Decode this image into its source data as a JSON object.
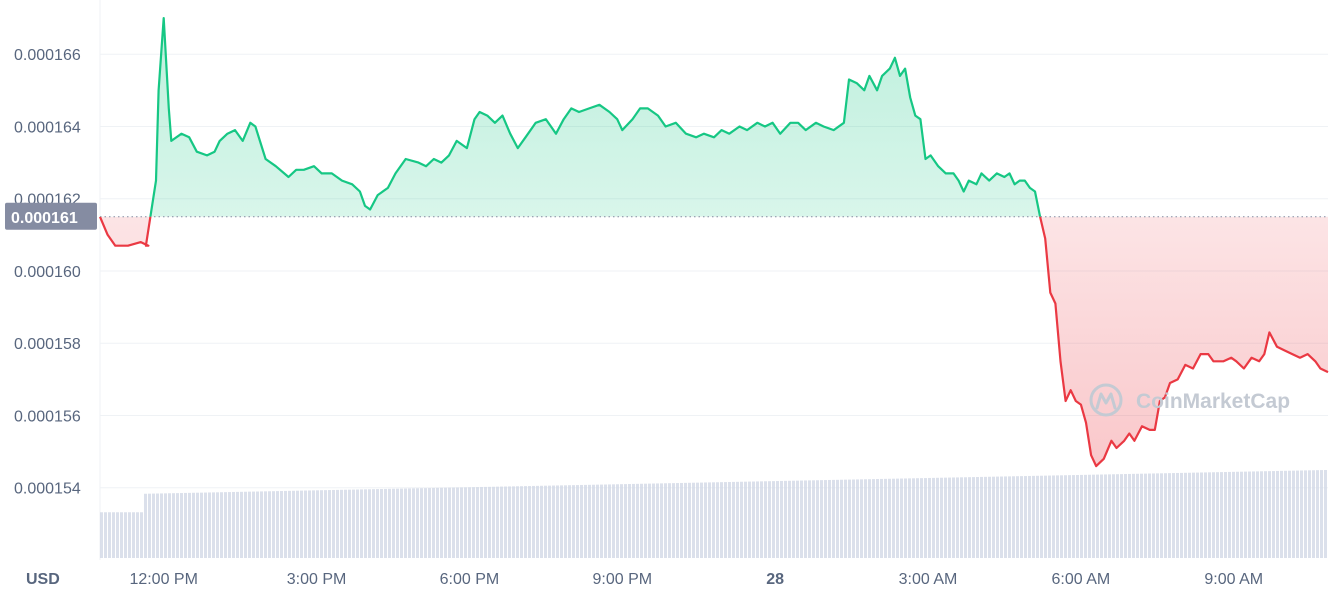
{
  "currency_label": "USD",
  "watermark": "CoinMarketCap",
  "colors": {
    "up": "#16c784",
    "down": "#ea3943",
    "grid": "#eff2f5",
    "axis_text": "#58667e",
    "volume": "#cfd6e4",
    "open_tag_bg": "#858ca2"
  },
  "chart_data": {
    "type": "area",
    "open_price": 0.0001615,
    "open_price_label": "0.000161",
    "ylim": [
      0.000152,
      0.0001675
    ],
    "y_ticks": [
      {
        "value": 0.000166,
        "label": "0.000166"
      },
      {
        "value": 0.000164,
        "label": "0.000164"
      },
      {
        "value": 0.000162,
        "label": "0.000162"
      },
      {
        "value": 0.00016,
        "label": "0.000160"
      },
      {
        "value": 0.000158,
        "label": "0.000158"
      },
      {
        "value": 0.000156,
        "label": "0.000156"
      },
      {
        "value": 0.000154,
        "label": "0.000154"
      }
    ],
    "x_range_hours": [
      -1.25,
      22.85
    ],
    "x_ticks": [
      {
        "hour": 0,
        "label": "12:00 PM",
        "bold": false
      },
      {
        "hour": 3,
        "label": "3:00 PM",
        "bold": false
      },
      {
        "hour": 6,
        "label": "6:00 PM",
        "bold": false
      },
      {
        "hour": 9,
        "label": "9:00 PM",
        "bold": false
      },
      {
        "hour": 12,
        "label": "28",
        "bold": true
      },
      {
        "hour": 15,
        "label": "3:00 AM",
        "bold": false
      },
      {
        "hour": 18,
        "label": "6:00 AM",
        "bold": false
      },
      {
        "hour": 21,
        "label": "9:00 AM",
        "bold": false
      }
    ],
    "series": [
      {
        "points": [
          [
            -1.25,
            0.0001615
          ],
          [
            -1.1,
            0.000161
          ],
          [
            -0.95,
            0.0001607
          ],
          [
            -0.7,
            0.0001607
          ],
          [
            -0.45,
            0.0001608
          ],
          [
            -0.3,
            0.0001607
          ],
          [
            -0.35,
            0.0001607
          ],
          [
            -0.15,
            0.0001625
          ],
          [
            -0.1,
            0.000165
          ],
          [
            0.0,
            0.000167
          ],
          [
            0.1,
            0.0001645
          ],
          [
            0.15,
            0.0001636
          ],
          [
            0.35,
            0.0001638
          ],
          [
            0.5,
            0.0001637
          ],
          [
            0.65,
            0.0001633
          ],
          [
            0.85,
            0.0001632
          ],
          [
            1.0,
            0.0001633
          ],
          [
            1.1,
            0.0001636
          ],
          [
            1.25,
            0.0001638
          ],
          [
            1.4,
            0.0001639
          ],
          [
            1.55,
            0.0001636
          ],
          [
            1.7,
            0.0001641
          ],
          [
            1.8,
            0.000164
          ],
          [
            2.0,
            0.0001631
          ],
          [
            2.2,
            0.0001629
          ],
          [
            2.45,
            0.0001626
          ],
          [
            2.6,
            0.0001628
          ],
          [
            2.75,
            0.0001628
          ],
          [
            2.95,
            0.0001629
          ],
          [
            3.1,
            0.0001627
          ],
          [
            3.3,
            0.0001627
          ],
          [
            3.5,
            0.0001625
          ],
          [
            3.7,
            0.0001624
          ],
          [
            3.85,
            0.0001622
          ],
          [
            3.95,
            0.0001618
          ],
          [
            4.05,
            0.0001617
          ],
          [
            4.2,
            0.0001621
          ],
          [
            4.4,
            0.0001623
          ],
          [
            4.55,
            0.0001627
          ],
          [
            4.75,
            0.0001631
          ],
          [
            5.0,
            0.000163
          ],
          [
            5.15,
            0.0001629
          ],
          [
            5.3,
            0.0001631
          ],
          [
            5.45,
            0.000163
          ],
          [
            5.6,
            0.0001632
          ],
          [
            5.75,
            0.0001636
          ],
          [
            5.95,
            0.0001634
          ],
          [
            6.1,
            0.0001642
          ],
          [
            6.2,
            0.0001644
          ],
          [
            6.35,
            0.0001643
          ],
          [
            6.5,
            0.0001641
          ],
          [
            6.65,
            0.0001643
          ],
          [
            6.8,
            0.0001638
          ],
          [
            6.95,
            0.0001634
          ],
          [
            7.1,
            0.0001637
          ],
          [
            7.3,
            0.0001641
          ],
          [
            7.5,
            0.0001642
          ],
          [
            7.7,
            0.0001638
          ],
          [
            7.85,
            0.0001642
          ],
          [
            8.0,
            0.0001645
          ],
          [
            8.15,
            0.0001644
          ],
          [
            8.35,
            0.0001645
          ],
          [
            8.55,
            0.0001646
          ],
          [
            8.75,
            0.0001644
          ],
          [
            8.9,
            0.0001642
          ],
          [
            9.0,
            0.0001639
          ],
          [
            9.2,
            0.0001642
          ],
          [
            9.35,
            0.0001645
          ],
          [
            9.5,
            0.0001645
          ],
          [
            9.7,
            0.0001643
          ],
          [
            9.85,
            0.000164
          ],
          [
            10.05,
            0.0001641
          ],
          [
            10.25,
            0.0001638
          ],
          [
            10.45,
            0.0001637
          ],
          [
            10.6,
            0.0001638
          ],
          [
            10.8,
            0.0001637
          ],
          [
            10.95,
            0.0001639
          ],
          [
            11.1,
            0.0001638
          ],
          [
            11.3,
            0.000164
          ],
          [
            11.45,
            0.0001639
          ],
          [
            11.65,
            0.0001641
          ],
          [
            11.8,
            0.000164
          ],
          [
            11.95,
            0.0001641
          ],
          [
            12.1,
            0.0001638
          ],
          [
            12.3,
            0.0001641
          ],
          [
            12.45,
            0.0001641
          ],
          [
            12.6,
            0.0001639
          ],
          [
            12.8,
            0.0001641
          ],
          [
            12.95,
            0.000164
          ],
          [
            13.15,
            0.0001639
          ],
          [
            13.35,
            0.0001641
          ],
          [
            13.45,
            0.0001653
          ],
          [
            13.6,
            0.0001652
          ],
          [
            13.75,
            0.000165
          ],
          [
            13.85,
            0.0001654
          ],
          [
            14.0,
            0.000165
          ],
          [
            14.1,
            0.0001654
          ],
          [
            14.25,
            0.0001656
          ],
          [
            14.35,
            0.0001659
          ],
          [
            14.45,
            0.0001654
          ],
          [
            14.55,
            0.0001656
          ],
          [
            14.65,
            0.0001648
          ],
          [
            14.75,
            0.0001643
          ],
          [
            14.85,
            0.0001642
          ],
          [
            14.95,
            0.0001631
          ],
          [
            15.05,
            0.0001632
          ],
          [
            15.2,
            0.0001629
          ],
          [
            15.35,
            0.0001627
          ],
          [
            15.5,
            0.0001627
          ],
          [
            15.6,
            0.0001625
          ],
          [
            15.7,
            0.0001622
          ],
          [
            15.8,
            0.0001625
          ],
          [
            15.95,
            0.0001624
          ],
          [
            16.05,
            0.0001627
          ],
          [
            16.2,
            0.0001625
          ],
          [
            16.35,
            0.0001627
          ],
          [
            16.5,
            0.0001626
          ],
          [
            16.6,
            0.0001627
          ],
          [
            16.7,
            0.0001624
          ],
          [
            16.8,
            0.0001625
          ],
          [
            16.9,
            0.0001625
          ],
          [
            17.0,
            0.0001623
          ],
          [
            17.1,
            0.0001622
          ],
          [
            17.2,
            0.0001615
          ],
          [
            17.3,
            0.0001609
          ],
          [
            17.4,
            0.0001594
          ],
          [
            17.5,
            0.0001591
          ],
          [
            17.6,
            0.0001575
          ],
          [
            17.7,
            0.0001564
          ],
          [
            17.8,
            0.0001567
          ],
          [
            17.9,
            0.0001564
          ],
          [
            18.0,
            0.0001563
          ],
          [
            18.1,
            0.0001558
          ],
          [
            18.2,
            0.0001549
          ],
          [
            18.3,
            0.0001546
          ],
          [
            18.45,
            0.0001548
          ],
          [
            18.6,
            0.0001553
          ],
          [
            18.7,
            0.0001551
          ],
          [
            18.85,
            0.0001553
          ],
          [
            18.95,
            0.0001555
          ],
          [
            19.05,
            0.0001553
          ],
          [
            19.2,
            0.0001557
          ],
          [
            19.35,
            0.0001556
          ],
          [
            19.45,
            0.0001556
          ],
          [
            19.55,
            0.0001564
          ],
          [
            19.65,
            0.0001565
          ],
          [
            19.75,
            0.0001569
          ],
          [
            19.9,
            0.000157
          ],
          [
            20.05,
            0.0001574
          ],
          [
            20.2,
            0.0001573
          ],
          [
            20.35,
            0.0001577
          ],
          [
            20.5,
            0.0001577
          ],
          [
            20.6,
            0.0001575
          ],
          [
            20.8,
            0.0001575
          ],
          [
            20.95,
            0.0001576
          ],
          [
            21.05,
            0.0001575
          ],
          [
            21.2,
            0.0001573
          ],
          [
            21.35,
            0.0001576
          ],
          [
            21.5,
            0.0001575
          ],
          [
            21.6,
            0.0001577
          ],
          [
            21.7,
            0.0001583
          ],
          [
            21.85,
            0.0001579
          ],
          [
            22.0,
            0.0001578
          ],
          [
            22.15,
            0.0001577
          ],
          [
            22.3,
            0.0001576
          ],
          [
            22.45,
            0.0001577
          ],
          [
            22.6,
            0.0001575
          ],
          [
            22.7,
            0.0001573
          ],
          [
            22.85,
            0.0001572
          ]
        ]
      }
    ],
    "volume": {
      "min_level": 0.52,
      "max_level": 1.0
    }
  }
}
